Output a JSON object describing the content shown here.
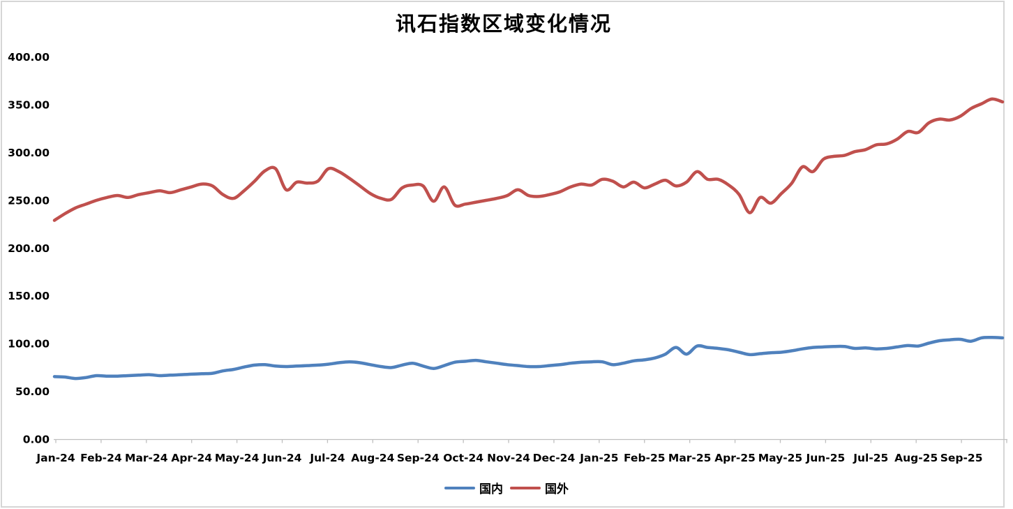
{
  "chart_data": {
    "type": "line",
    "title": "讯石指数区域变化情况",
    "xlabel": "",
    "ylabel": "",
    "x_is_time": true,
    "categories": [
      "Jan-24",
      "Feb-24",
      "Mar-24",
      "Apr-24",
      "May-24",
      "Jun-24",
      "Jul-24",
      "Aug-24",
      "Sep-24",
      "Oct-24",
      "Nov-24",
      "Dec-24",
      "Jan-25",
      "Feb-25",
      "Mar-25",
      "Apr-25",
      "May-25",
      "Jun-25",
      "Jul-25",
      "Aug-25",
      "Sep-25"
    ],
    "y_axis": {
      "min": 0,
      "max": 400,
      "step": 50,
      "tick_labels": [
        "0.00",
        "50.00",
        "100.00",
        "150.00",
        "200.00",
        "250.00",
        "300.00",
        "350.00",
        "400.00"
      ]
    },
    "grid": false,
    "legend_position": "bottom-center",
    "points_per_series": 91,
    "sampling": "weekly points spanning Jan-24 through end of Sep-25",
    "series": [
      {
        "name": "国内",
        "color": "#4F81BD",
        "values": [
          65.5,
          65,
          63.5,
          64.5,
          66.5,
          66,
          66,
          66.5,
          67,
          67.5,
          66.5,
          67,
          67.5,
          68,
          68.5,
          69,
          71.5,
          73,
          75.5,
          77.5,
          78,
          76.5,
          76,
          76.5,
          77,
          77.5,
          78.5,
          80,
          81,
          80,
          78,
          76,
          75,
          77.5,
          79.5,
          76.5,
          74,
          77,
          80.5,
          81.5,
          82.5,
          81,
          79.5,
          78,
          77,
          76,
          76,
          77,
          78,
          79.5,
          80.5,
          81,
          81,
          78,
          79.5,
          82,
          83,
          85,
          89,
          96,
          89,
          97.5,
          96,
          95,
          93.5,
          91,
          88.5,
          89.5,
          90.5,
          91,
          92.5,
          94.5,
          96,
          96.5,
          97,
          97,
          95,
          95.5,
          94.5,
          95,
          96.5,
          98,
          97.5,
          100.5,
          103,
          104,
          104.5,
          102.5,
          106,
          106.5,
          106
        ]
      },
      {
        "name": "国外",
        "color": "#C0504D",
        "values": [
          229,
          236,
          242,
          246,
          250,
          253,
          255,
          253,
          256,
          258,
          260,
          258,
          261,
          264,
          267,
          265,
          256,
          252,
          260,
          270,
          281,
          283,
          261,
          269,
          268,
          270,
          283,
          280,
          273,
          265,
          257,
          252,
          251,
          263,
          266,
          265,
          249,
          264,
          245,
          246,
          248,
          250,
          252,
          255,
          261,
          255,
          254,
          256,
          259,
          264,
          267,
          266,
          272,
          270,
          264,
          269,
          263,
          267,
          271,
          265,
          269,
          280,
          272,
          272,
          266,
          256,
          237,
          253,
          247,
          257,
          268,
          285,
          280,
          293,
          296,
          297,
          301,
          303,
          308,
          309,
          314,
          322,
          321,
          331,
          335,
          334,
          338,
          346,
          351,
          356,
          353
        ]
      }
    ]
  },
  "colors": {
    "background": "#FFFFFF",
    "border": "#D6D6D6",
    "axis": "#BFBFBF",
    "text": "#000000",
    "series_domestic": "#4F81BD",
    "series_foreign": "#C0504D"
  }
}
